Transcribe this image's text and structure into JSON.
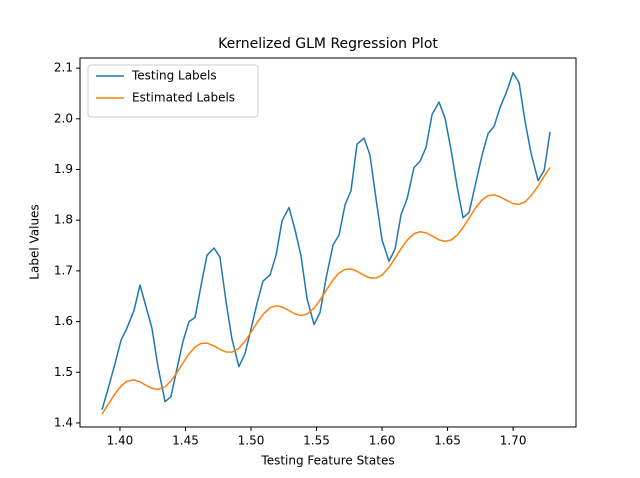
{
  "chart_data": {
    "type": "line",
    "title": "Kernelized GLM Regression Plot",
    "xlabel": "Testing Feature States",
    "ylabel": "Label Values",
    "x": [
      1.3863,
      1.3908,
      1.3962,
      1.4008,
      1.4053,
      1.4107,
      1.4153,
      1.4198,
      1.4244,
      1.429,
      1.4344,
      1.4389,
      1.4435,
      1.4481,
      1.4527,
      1.4573,
      1.4618,
      1.4664,
      1.4718,
      1.4763,
      1.4809,
      1.4855,
      1.4908,
      1.4954,
      1.5,
      1.5046,
      1.5092,
      1.5145,
      1.5191,
      1.5237,
      1.529,
      1.5336,
      1.5382,
      1.5427,
      1.5481,
      1.5527,
      1.5573,
      1.5626,
      1.5672,
      1.5718,
      1.5763,
      1.5809,
      1.5863,
      1.5908,
      1.5954,
      1.6,
      1.6053,
      1.6099,
      1.6145,
      1.6191,
      1.6244,
      1.629,
      1.6336,
      1.6382,
      1.6435,
      1.6481,
      1.6527,
      1.6573,
      1.6618,
      1.6664,
      1.671,
      1.6763,
      1.6809,
      1.6855,
      1.6901,
      1.6947,
      1.7,
      1.7046,
      1.7092,
      1.7137,
      1.7191,
      1.7237,
      1.7282
    ],
    "series": [
      {
        "name": "Testing Labels",
        "color": "#1f77b4",
        "values": [
          1.426,
          1.466,
          1.517,
          1.563,
          1.587,
          1.622,
          1.672,
          1.63,
          1.587,
          1.511,
          1.442,
          1.452,
          1.507,
          1.561,
          1.6,
          1.608,
          1.67,
          1.731,
          1.745,
          1.727,
          1.64,
          1.565,
          1.511,
          1.537,
          1.585,
          1.636,
          1.68,
          1.692,
          1.731,
          1.799,
          1.825,
          1.781,
          1.729,
          1.646,
          1.594,
          1.618,
          1.686,
          1.751,
          1.771,
          1.831,
          1.858,
          1.95,
          1.962,
          1.928,
          1.842,
          1.761,
          1.719,
          1.743,
          1.811,
          1.842,
          1.904,
          1.916,
          1.944,
          2.009,
          2.033,
          2.001,
          1.938,
          1.866,
          1.805,
          1.815,
          1.868,
          1.928,
          1.971,
          1.985,
          2.023,
          2.051,
          2.091,
          2.071,
          1.994,
          1.932,
          1.878,
          1.898,
          1.974
        ]
      },
      {
        "name": "Estimated Labels",
        "color": "#ff7f0e",
        "values": [
          1.4176,
          1.4358,
          1.4576,
          1.4729,
          1.4823,
          1.4849,
          1.4811,
          1.4744,
          1.4683,
          1.4661,
          1.4712,
          1.4828,
          1.4995,
          1.5184,
          1.5363,
          1.5497,
          1.5569,
          1.5575,
          1.552,
          1.5451,
          1.54,
          1.5397,
          1.5474,
          1.5609,
          1.5787,
          1.5977,
          1.6144,
          1.6272,
          1.6311,
          1.6289,
          1.6216,
          1.6152,
          1.6121,
          1.6149,
          1.6265,
          1.6424,
          1.6613,
          1.6823,
          1.6958,
          1.703,
          1.7037,
          1.6992,
          1.6912,
          1.6861,
          1.6857,
          1.6918,
          1.7069,
          1.7248,
          1.7438,
          1.7605,
          1.7733,
          1.7772,
          1.775,
          1.7689,
          1.7613,
          1.7582,
          1.7609,
          1.7704,
          1.7856,
          1.8042,
          1.8228,
          1.8401,
          1.8484,
          1.85,
          1.8462,
          1.8395,
          1.8327,
          1.8314,
          1.8364,
          1.848,
          1.8677,
          1.8868,
          1.904
        ]
      }
    ],
    "xlim": [
      1.3695,
      1.748
    ],
    "xticks": [
      {
        "value": 1.4,
        "label": "1.40"
      },
      {
        "value": 1.45,
        "label": "1.45"
      },
      {
        "value": 1.5,
        "label": "1.50"
      },
      {
        "value": 1.55,
        "label": "1.55"
      },
      {
        "value": 1.6,
        "label": "1.60"
      },
      {
        "value": 1.65,
        "label": "1.65"
      },
      {
        "value": 1.7,
        "label": "1.70"
      }
    ],
    "ylim": [
      1.392,
      2.12
    ],
    "yticks": [
      1.4,
      1.5,
      1.6,
      1.7,
      1.8,
      1.9,
      {
        "value": 2,
        "label": "2.0"
      },
      2.1
    ],
    "legend": "upper left"
  }
}
